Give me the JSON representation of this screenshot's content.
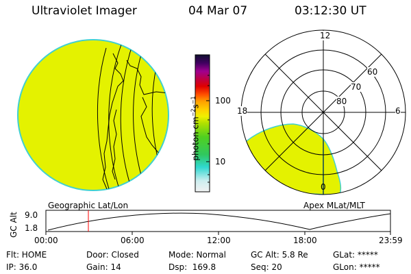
{
  "header": {
    "title": "Ultraviolet Imager",
    "date": "04 Mar 07",
    "time": "03:12:30 UT"
  },
  "colors": {
    "fill": "#e4f200",
    "limb": "#40d0d0",
    "time_marker": "#ff0000"
  },
  "left_panel": {
    "label": "Geographic Lat/Lon"
  },
  "colorbar": {
    "unit_label": "photon cm",
    "unit_exp1": "−2",
    "unit_s": "s",
    "unit_exp2": "−1",
    "tick_100": "100",
    "tick_10": "10",
    "scale": "log"
  },
  "right_panel": {
    "label": "Apex MLat/MLT",
    "mlt_labels": {
      "top": "12",
      "left": "18",
      "right": "6",
      "bottom": "0"
    },
    "lat_labels": [
      "60",
      "70",
      "80"
    ]
  },
  "altitude_strip": {
    "ylabel": "GC Alt",
    "ymax": "9.0",
    "ymin": "1.8",
    "xticks": [
      "00:00",
      "06:00",
      "12:00",
      "18:00",
      "23:59"
    ],
    "current_time": "03:12:30"
  },
  "info": {
    "flt": "Flt: HOME",
    "ip": "IP: 36.0",
    "door": "Door: Closed",
    "gain": "Gain: 14",
    "mode": "Mode: Normal",
    "dsp": "Dsp:  169.8",
    "gcalt": "GC Alt: 5.8 Re",
    "seq": "Seq: 20",
    "glat": "GLat: *****",
    "glon": "GLon: *****"
  }
}
